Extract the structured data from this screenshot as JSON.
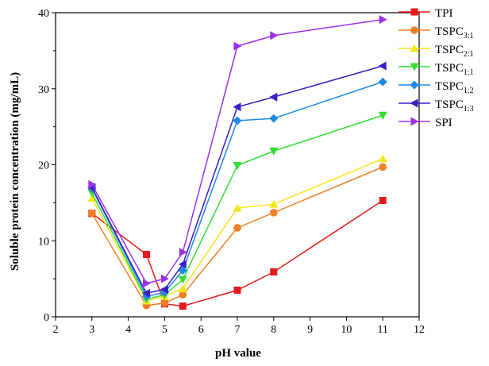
{
  "chart_data": {
    "type": "line",
    "xlabel": "pH value",
    "ylabel": "Soluble protein concentration (mg/mL)",
    "xlim": [
      2,
      12
    ],
    "ylim": [
      0,
      40
    ],
    "xticks": [
      2,
      3,
      4,
      5,
      6,
      7,
      8,
      9,
      10,
      11,
      12
    ],
    "yticks": [
      0,
      10,
      20,
      30,
      40
    ],
    "x": [
      3,
      4.5,
      5,
      5.5,
      7,
      8,
      11
    ],
    "grid": false,
    "legend_position": "top-right",
    "series": [
      {
        "name": "TPI",
        "sub": "",
        "color": "#e41a1c",
        "marker": "square",
        "values": [
          13.6,
          8.2,
          1.7,
          1.4,
          3.5,
          5.9,
          15.3
        ]
      },
      {
        "name": "TSPC",
        "sub": "3:1",
        "color": "#f07f24",
        "marker": "circle",
        "values": [
          13.6,
          1.5,
          1.8,
          2.9,
          11.7,
          13.7,
          19.7
        ]
      },
      {
        "name": "TSPC",
        "sub": "2:1",
        "color": "#f5e61c",
        "marker": "triangle-up",
        "values": [
          15.6,
          2.1,
          2.7,
          3.7,
          14.3,
          14.8,
          20.8
        ]
      },
      {
        "name": "TSPC",
        "sub": "1:1",
        "color": "#33dd33",
        "marker": "triangle-down",
        "values": [
          16.3,
          2.3,
          2.9,
          4.9,
          19.9,
          21.8,
          26.5
        ]
      },
      {
        "name": "TSPC",
        "sub": "1:2",
        "color": "#1e88e5",
        "marker": "diamond",
        "values": [
          16.9,
          2.7,
          3.2,
          6.1,
          25.8,
          26.1,
          30.9
        ]
      },
      {
        "name": "TSPC",
        "sub": "1:3",
        "color": "#3a1ec8",
        "marker": "triangle-left",
        "values": [
          17.0,
          3.1,
          3.6,
          6.9,
          27.6,
          28.9,
          33.0
        ]
      },
      {
        "name": "SPI",
        "sub": "",
        "color": "#9b30e8",
        "marker": "triangle-right",
        "values": [
          17.4,
          4.4,
          5.0,
          8.5,
          35.6,
          37.0,
          39.1
        ]
      }
    ]
  }
}
